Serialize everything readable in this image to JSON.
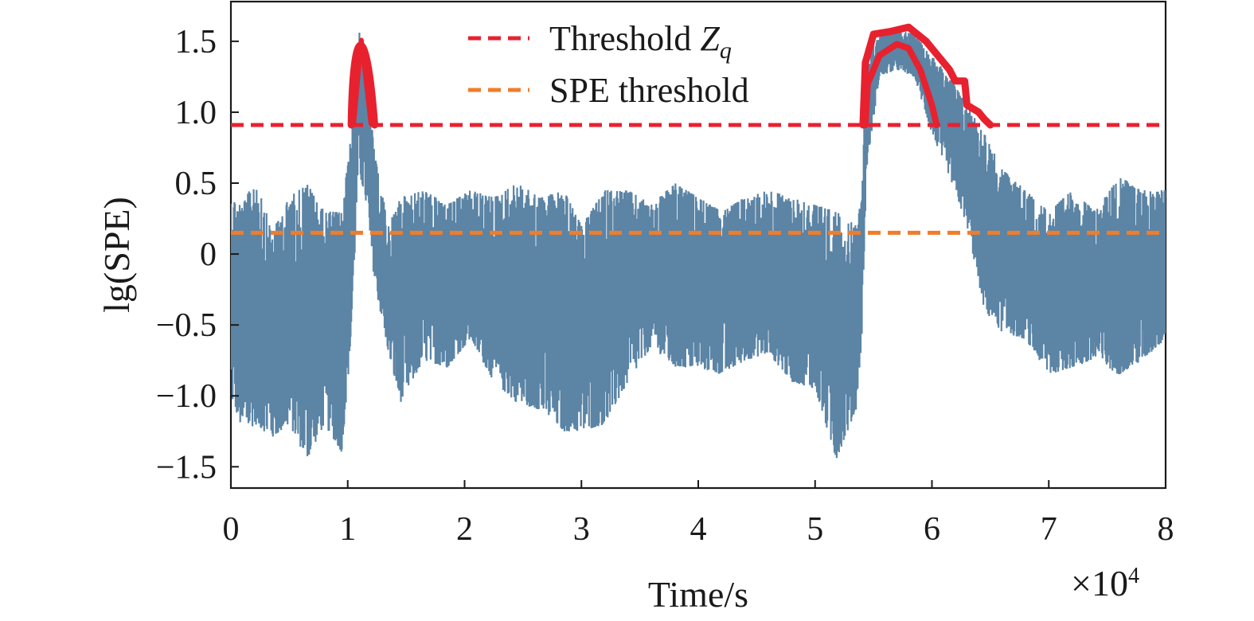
{
  "chart_data": {
    "type": "line",
    "xlabel": "Time/s",
    "x_multiplier_label": "×10",
    "x_multiplier_exp": "4",
    "ylabel": "lg(SPE)",
    "xlim": [
      0,
      80000
    ],
    "ylim": [
      -1.65,
      1.78
    ],
    "x_ticks": [
      0,
      10000,
      20000,
      30000,
      40000,
      50000,
      60000,
      70000,
      80000
    ],
    "x_tick_labels": [
      "0",
      "1",
      "2",
      "3",
      "4",
      "5",
      "6",
      "7",
      "8"
    ],
    "y_ticks": [
      -1.5,
      -1.0,
      -0.5,
      0,
      0.5,
      1.0,
      1.5
    ],
    "y_tick_labels": [
      "−1.5",
      "−1.0",
      "−0.5",
      "0",
      "0.5",
      "1.0",
      "1.5"
    ],
    "grid": false,
    "legend_position": "top-center",
    "legend": [
      {
        "label": "Threshold ",
        "label_italic": "Z",
        "label_sub": "q",
        "color": "#e8212f",
        "style": "dashed"
      },
      {
        "label": "SPE threshold",
        "color": "#ef7d2b",
        "style": "dashed"
      }
    ],
    "thresholds": [
      {
        "name": "Threshold Zq",
        "y": 0.91,
        "color": "#e8212f"
      },
      {
        "name": "SPE threshold",
        "y": 0.15,
        "color": "#ef7d2b"
      }
    ],
    "series": [
      {
        "kind": "signal",
        "color": "#5b84a5",
        "envelope": [
          {
            "x": 0,
            "lo": -1.0,
            "hi": 0.4
          },
          {
            "x": 1000,
            "lo": -1.25,
            "hi": 0.35
          },
          {
            "x": 2200,
            "lo": -1.2,
            "hi": 0.55
          },
          {
            "x": 3500,
            "lo": -1.3,
            "hi": 0.15
          },
          {
            "x": 5000,
            "lo": -1.2,
            "hi": 0.4
          },
          {
            "x": 6500,
            "lo": -1.45,
            "hi": 0.5
          },
          {
            "x": 8000,
            "lo": -1.2,
            "hi": 0.3
          },
          {
            "x": 9500,
            "lo": -1.4,
            "hi": 0.3
          },
          {
            "x": 10300,
            "lo": -0.6,
            "hi": 0.85
          },
          {
            "x": 10900,
            "lo": 0.6,
            "hi": 1.6
          },
          {
            "x": 11500,
            "lo": 0.4,
            "hi": 1.4
          },
          {
            "x": 12300,
            "lo": -0.2,
            "hi": 0.7
          },
          {
            "x": 13500,
            "lo": -0.7,
            "hi": 0.2
          },
          {
            "x": 14500,
            "lo": -1.05,
            "hi": 0.4
          },
          {
            "x": 16500,
            "lo": -0.75,
            "hi": 0.45
          },
          {
            "x": 18500,
            "lo": -0.8,
            "hi": 0.35
          },
          {
            "x": 20500,
            "lo": -0.6,
            "hi": 0.45
          },
          {
            "x": 22500,
            "lo": -0.9,
            "hi": 0.4
          },
          {
            "x": 24500,
            "lo": -1.05,
            "hi": 0.5
          },
          {
            "x": 26500,
            "lo": -1.1,
            "hi": 0.4
          },
          {
            "x": 28500,
            "lo": -1.25,
            "hi": 0.45
          },
          {
            "x": 30000,
            "lo": -1.25,
            "hi": 0.2
          },
          {
            "x": 32000,
            "lo": -1.2,
            "hi": 0.45
          },
          {
            "x": 34000,
            "lo": -0.9,
            "hi": 0.45
          },
          {
            "x": 36000,
            "lo": -0.65,
            "hi": 0.35
          },
          {
            "x": 38000,
            "lo": -0.8,
            "hi": 0.5
          },
          {
            "x": 40000,
            "lo": -0.8,
            "hi": 0.4
          },
          {
            "x": 42000,
            "lo": -0.85,
            "hi": 0.3
          },
          {
            "x": 44000,
            "lo": -0.75,
            "hi": 0.4
          },
          {
            "x": 46000,
            "lo": -0.7,
            "hi": 0.45
          },
          {
            "x": 48000,
            "lo": -0.9,
            "hi": 0.4
          },
          {
            "x": 50000,
            "lo": -0.95,
            "hi": 0.35
          },
          {
            "x": 51800,
            "lo": -1.45,
            "hi": 0.3
          },
          {
            "x": 53500,
            "lo": -1.1,
            "hi": 0.2
          },
          {
            "x": 54000,
            "lo": -0.6,
            "hi": 0.4
          },
          {
            "x": 54400,
            "lo": 0.6,
            "hi": 1.4
          },
          {
            "x": 55500,
            "lo": 1.25,
            "hi": 1.55
          },
          {
            "x": 57000,
            "lo": 1.3,
            "hi": 1.58
          },
          {
            "x": 58500,
            "lo": 1.25,
            "hi": 1.55
          },
          {
            "x": 60000,
            "lo": 0.85,
            "hi": 1.4
          },
          {
            "x": 61500,
            "lo": 0.55,
            "hi": 1.25
          },
          {
            "x": 63000,
            "lo": 0.2,
            "hi": 1.05
          },
          {
            "x": 64500,
            "lo": -0.4,
            "hi": 0.85
          },
          {
            "x": 66000,
            "lo": -0.55,
            "hi": 0.6
          },
          {
            "x": 68000,
            "lo": -0.6,
            "hi": 0.45
          },
          {
            "x": 70000,
            "lo": -0.85,
            "hi": 0.3
          },
          {
            "x": 72000,
            "lo": -0.8,
            "hi": 0.45
          },
          {
            "x": 74000,
            "lo": -0.75,
            "hi": 0.3
          },
          {
            "x": 76000,
            "lo": -0.85,
            "hi": 0.55
          },
          {
            "x": 78000,
            "lo": -0.75,
            "hi": 0.45
          },
          {
            "x": 80000,
            "lo": -0.6,
            "hi": 0.45
          }
        ]
      },
      {
        "kind": "exceedance",
        "color": "#e8212f",
        "segments": [
          {
            "x_start": 10300,
            "x_end": 12300,
            "peak": 1.62,
            "lower_x_start": 10500,
            "lower_x_end": 12000
          },
          {
            "x_start": 54100,
            "x_end": 65000,
            "upper": [
              {
                "x": 54100,
                "y": 0.91
              },
              {
                "x": 54300,
                "y": 1.35
              },
              {
                "x": 55000,
                "y": 1.55
              },
              {
                "x": 56500,
                "y": 1.57
              },
              {
                "x": 58000,
                "y": 1.6
              },
              {
                "x": 59500,
                "y": 1.5
              },
              {
                "x": 60500,
                "y": 1.4
              },
              {
                "x": 61500,
                "y": 1.3
              },
              {
                "x": 62000,
                "y": 1.22
              },
              {
                "x": 62800,
                "y": 1.22
              },
              {
                "x": 63000,
                "y": 1.05
              },
              {
                "x": 64000,
                "y": 1.0
              },
              {
                "x": 64500,
                "y": 0.95
              },
              {
                "x": 65000,
                "y": 0.91
              }
            ],
            "lower": [
              {
                "x": 54300,
                "y": 0.91
              },
              {
                "x": 54500,
                "y": 1.2
              },
              {
                "x": 55500,
                "y": 1.4
              },
              {
                "x": 57000,
                "y": 1.48
              },
              {
                "x": 58000,
                "y": 1.45
              },
              {
                "x": 59000,
                "y": 1.3
              },
              {
                "x": 60000,
                "y": 1.05
              },
              {
                "x": 60400,
                "y": 0.91
              }
            ]
          }
        ]
      }
    ]
  }
}
